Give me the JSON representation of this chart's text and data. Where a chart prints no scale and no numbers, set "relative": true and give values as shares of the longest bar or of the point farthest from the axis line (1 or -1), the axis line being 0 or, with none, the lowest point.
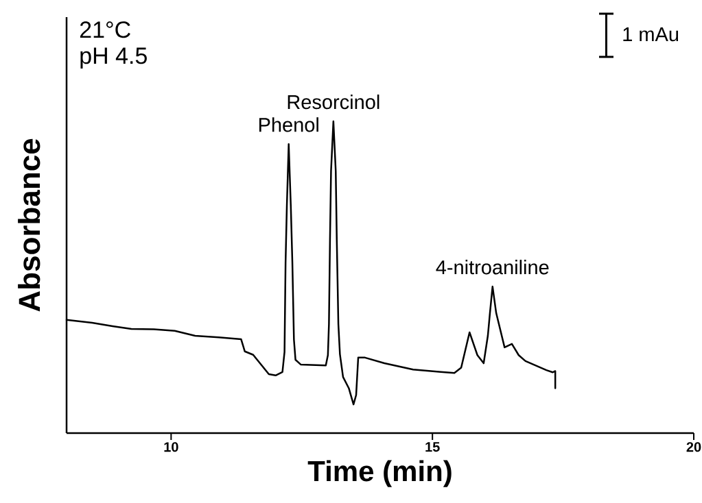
{
  "chart_data": {
    "type": "line",
    "xlabel": "Time (min)",
    "ylabel": "Absorbance",
    "relative": true,
    "color": "#000000",
    "xlim": [
      8,
      20
    ],
    "xticks": [
      10,
      15,
      20
    ],
    "x": [
      8.0,
      8.49,
      8.88,
      9.24,
      9.67,
      10.07,
      10.46,
      10.91,
      11.34,
      11.41,
      11.57,
      11.87,
      12.0,
      12.13,
      12.17,
      12.19,
      12.215,
      12.25,
      12.29,
      12.32,
      12.35,
      12.38,
      12.48,
      12.96,
      13.0,
      13.02,
      13.04,
      13.06,
      13.105,
      13.15,
      13.17,
      13.2,
      13.23,
      13.29,
      13.4,
      13.49,
      13.54,
      13.58,
      13.71,
      14.08,
      14.63,
      15.16,
      15.42,
      15.55,
      15.71,
      15.86,
      15.98,
      16.06,
      16.1,
      16.15,
      16.22,
      16.38,
      16.52,
      16.65,
      16.78,
      17.18,
      17.3,
      17.35,
      17.35
    ],
    "values": [
      0.363,
      0.354,
      0.343,
      0.334,
      0.333,
      0.328,
      0.312,
      0.307,
      0.301,
      0.262,
      0.251,
      0.189,
      0.185,
      0.196,
      0.26,
      0.547,
      0.73,
      0.927,
      0.73,
      0.547,
      0.3,
      0.235,
      0.22,
      0.217,
      0.25,
      0.35,
      0.62,
      0.84,
      1.0,
      0.84,
      0.62,
      0.35,
      0.253,
      0.18,
      0.144,
      0.092,
      0.122,
      0.242,
      0.242,
      0.224,
      0.204,
      0.196,
      0.193,
      0.21,
      0.323,
      0.25,
      0.224,
      0.312,
      0.385,
      0.47,
      0.385,
      0.275,
      0.286,
      0.25,
      0.231,
      0.202,
      0.195,
      0.199,
      0.144
    ],
    "annotations": [
      "21°C",
      "pH 4.5",
      {
        "text": "Phenol",
        "x": 12.25,
        "y": 0.927
      },
      {
        "text": "Resorcinol",
        "x": 13.105,
        "y": 1.0
      },
      {
        "text": "4-nitroaniline",
        "x": 16.15,
        "y": 0.47
      },
      "1 mAu"
    ]
  }
}
